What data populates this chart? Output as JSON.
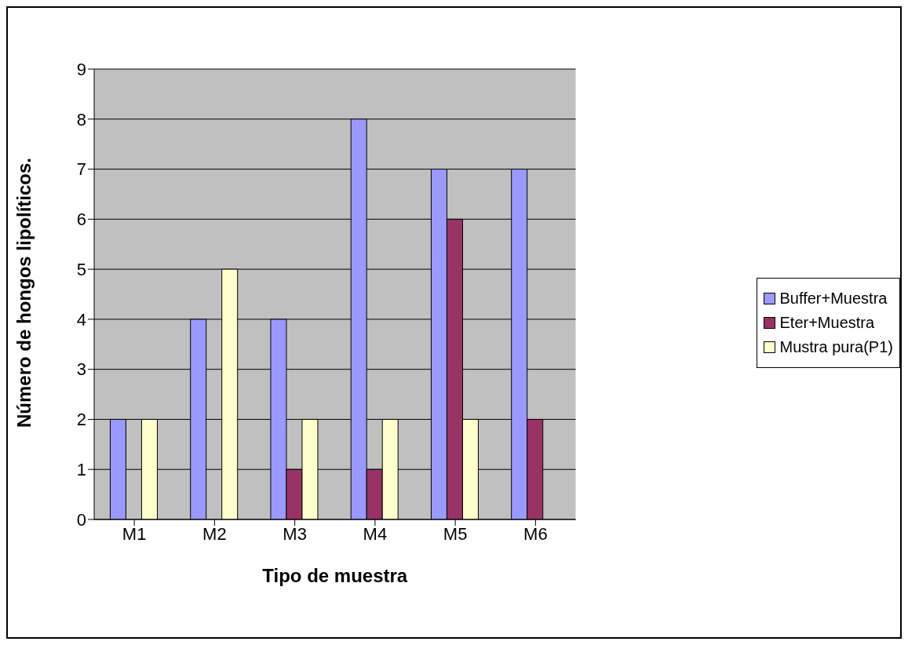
{
  "chart_data": {
    "type": "bar",
    "xlabel": "Tipo de muestra",
    "ylabel": "Número de hongos lipolíticos.",
    "categories": [
      "M1",
      "M2",
      "M3",
      "M4",
      "M5",
      "M6"
    ],
    "series": [
      {
        "name": "Buffer+Muestra",
        "color": "#9999ff",
        "values": [
          2,
          4,
          4,
          8,
          7,
          7
        ]
      },
      {
        "name": "Eter+Muestra",
        "color": "#993366",
        "values": [
          0,
          0,
          1,
          1,
          6,
          2
        ]
      },
      {
        "name": "Mustra pura(P1)",
        "color": "#ffffcc",
        "values": [
          2,
          5,
          2,
          2,
          2,
          0
        ]
      }
    ],
    "ylim": [
      0,
      9
    ],
    "yticks": [
      0,
      1,
      2,
      3,
      4,
      5,
      6,
      7,
      8,
      9
    ],
    "grid": "y",
    "legend": "right"
  }
}
